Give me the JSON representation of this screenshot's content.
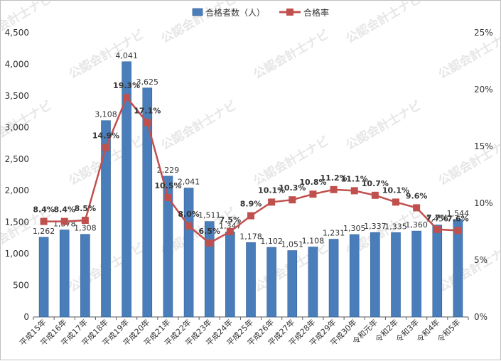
{
  "chart_data": {
    "type": "bar+line",
    "categories": [
      "平成15年",
      "平成16年",
      "平成17年",
      "平成18年",
      "平成19年",
      "平成20年",
      "平成21年",
      "平成22年",
      "平成23年",
      "平成24年",
      "平成25年",
      "平成26年",
      "平成27年",
      "平成28年",
      "平成29年",
      "平成30年",
      "令和元年",
      "令和2年",
      "令和3年",
      "令和4年",
      "令和5年"
    ],
    "series": [
      {
        "name": "合格者数（人）",
        "type": "bar",
        "axis": "left",
        "color": "#4a7ebb",
        "values": [
          1262,
          1378,
          1308,
          3108,
          4041,
          3625,
          2229,
          2041,
          1511,
          1347,
          1178,
          1102,
          1051,
          1108,
          1231,
          1305,
          1337,
          1335,
          1360,
          1456,
          1544
        ],
        "labels": [
          "1,262",
          "1,378",
          "1,308",
          "3,108",
          "4,041",
          "3,625",
          "2,229",
          "2,041",
          "1,511",
          "1,347",
          "1,178",
          "1,102",
          "1,051",
          "1,108",
          "1,231",
          "1,305",
          "1,337",
          "1,335",
          "1,360",
          "1,456",
          "1,544"
        ]
      },
      {
        "name": "合格率",
        "type": "line",
        "axis": "right",
        "color": "#c0504d",
        "values": [
          8.4,
          8.4,
          8.5,
          14.9,
          19.3,
          17.1,
          10.5,
          8.0,
          6.5,
          7.5,
          8.9,
          10.1,
          10.3,
          10.8,
          11.2,
          11.1,
          10.7,
          10.1,
          9.6,
          7.7,
          7.6
        ],
        "labels": [
          "8.4%",
          "8.4%",
          "8.5%",
          "14.9%",
          "19.3%",
          "17.1%",
          "10.5%",
          "8.0%",
          "6.5%",
          "7.5%",
          "8.9%",
          "10.1%",
          "10.3%",
          "10.8%",
          "11.2%",
          "11.1%",
          "10.7%",
          "10.1%",
          "9.6%",
          "7.7%",
          "7.6%"
        ]
      }
    ],
    "y_left": {
      "ylim": [
        0,
        4500
      ],
      "ticks": [
        0,
        500,
        1000,
        1500,
        2000,
        2500,
        3000,
        3500,
        4000,
        4500
      ],
      "tick_labels": [
        "0",
        "500",
        "1,000",
        "1,500",
        "2,000",
        "2,500",
        "3,000",
        "3,500",
        "4,000",
        "4,500"
      ]
    },
    "y_right": {
      "ylim": [
        0,
        25
      ],
      "ticks": [
        0,
        5,
        10,
        15,
        20,
        25
      ],
      "tick_labels": [
        "0%",
        "5%",
        "10%",
        "15%",
        "20%",
        "25%"
      ]
    },
    "legend": {
      "position": "top"
    },
    "grid": false,
    "watermark": "公認会計士ナビ"
  }
}
